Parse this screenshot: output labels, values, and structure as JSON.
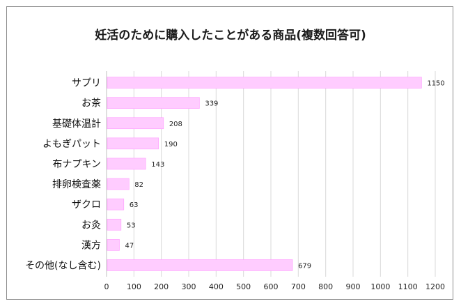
{
  "chart_data": {
    "type": "bar",
    "orientation": "horizontal",
    "title": "妊活のために購入したことがある商品(複数回答可)",
    "categories": [
      "サプリ",
      "お茶",
      "基礎体温計",
      "よもぎパット",
      "布ナプキン",
      "排卵検査薬",
      "ザクロ",
      "お灸",
      "漢方",
      "その他(なし含む)"
    ],
    "values": [
      1150,
      339,
      208,
      190,
      143,
      82,
      63,
      53,
      47,
      679
    ],
    "xlim": [
      0,
      1200
    ],
    "xticks": [
      0,
      100,
      200,
      300,
      400,
      500,
      600,
      700,
      800,
      900,
      1000,
      1100,
      1200
    ],
    "grid": "vertical",
    "bar_color": "#ffccff",
    "bar_border_color": "#ff99ff",
    "xlabel": "",
    "ylabel": ""
  }
}
